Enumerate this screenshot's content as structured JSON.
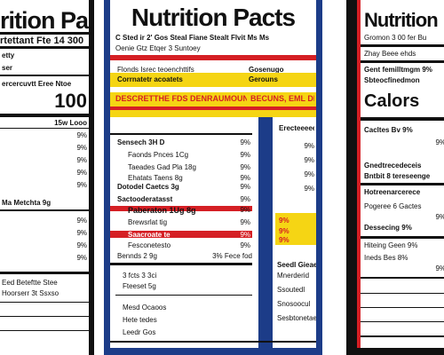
{
  "left_label": {
    "title": "rition Pack",
    "subtitle": "rtettant Fte 14 300",
    "lines": [
      "etty",
      "ser",
      "ercercuvtt Eree Ntoe",
      "",
      "15w Looo",
      "9%",
      "9%",
      "9%",
      "9%",
      "9%",
      "Ma Metchta 9g",
      "",
      "9%",
      "9%",
      "9%",
      "9%",
      "Eed Beteftte Stee",
      "Hoorserr 3t Ssxso",
      "",
      "",
      "",
      ""
    ],
    "big_value": "100"
  },
  "center_panel": {
    "title": "Nutrition Pacts",
    "header_line1": "C Sted ir 2' Gos Steal   Fiane Stealt Flvit Ms Ms",
    "header_line2": "Oenie Gtz Etqer 3 Suntoey",
    "rows": [
      "Flonds Isrec teoenchttifs",
      "Gosenugo",
      "Corrnatetr acoatets",
      "Gerouns",
      "DESCRETTHE FDS DENRAUMOUNSS",
      "BECUNS, EML DHEE",
      "Sensech 3H D",
      "9%",
      "Faonds Pnces 1Cg",
      "9%",
      "Taeades Gad  Pla 18g",
      "9%",
      "Ehatats Taens 8g",
      "9%",
      "Dotodel  Caetcs 3g",
      "9%",
      "Sactooderatasst",
      "9%",
      "Paberaton 1Ug  8g",
      "9%",
      "Brewsrlat tig",
      "9%",
      "Saacroate te",
      "9%",
      "Fesconetesto",
      "9%",
      "Bennds 2 9g",
      "3% Fece fod"
    ],
    "bottom": [
      "3 fcts  3 3ci",
      "Fteeset 5g",
      "Mesd Ocaoos",
      "Hete tedes",
      "Leedr Gos"
    ],
    "right_rows": [
      "Erecteeeee",
      "9%",
      "9%",
      "9%",
      "9%",
      "9%",
      "9%",
      "9%"
    ],
    "right_bottom": [
      "Seedl Gieaeu",
      "Mnerderid",
      "Ssoutedl",
      "Snosoocul",
      "Sesbtonetaes"
    ]
  },
  "right_label": {
    "title": "Nutrition",
    "subtitle": "Gromon 3 00 fer Bu",
    "lines": [
      "Zhay Beee ehds",
      "Gent femilltmgm 9%",
      "Sbteocfinedmon",
      "Cacltes Bv 9%",
      "9%",
      "Gnedtrecedeceis",
      "Bntbit 8 tereseenge",
      "Hotreenarcerece",
      "Pogeree 6 Gactes",
      "9%",
      "Dessecing 9%",
      "Hiteing Geen 9%",
      "Ineds Bes 8%",
      "9%"
    ],
    "cal_label": "Calors"
  },
  "colors": {
    "navy": "#1c3c88",
    "red": "#d51f24",
    "yellow": "#f5d514",
    "black": "#111111"
  }
}
